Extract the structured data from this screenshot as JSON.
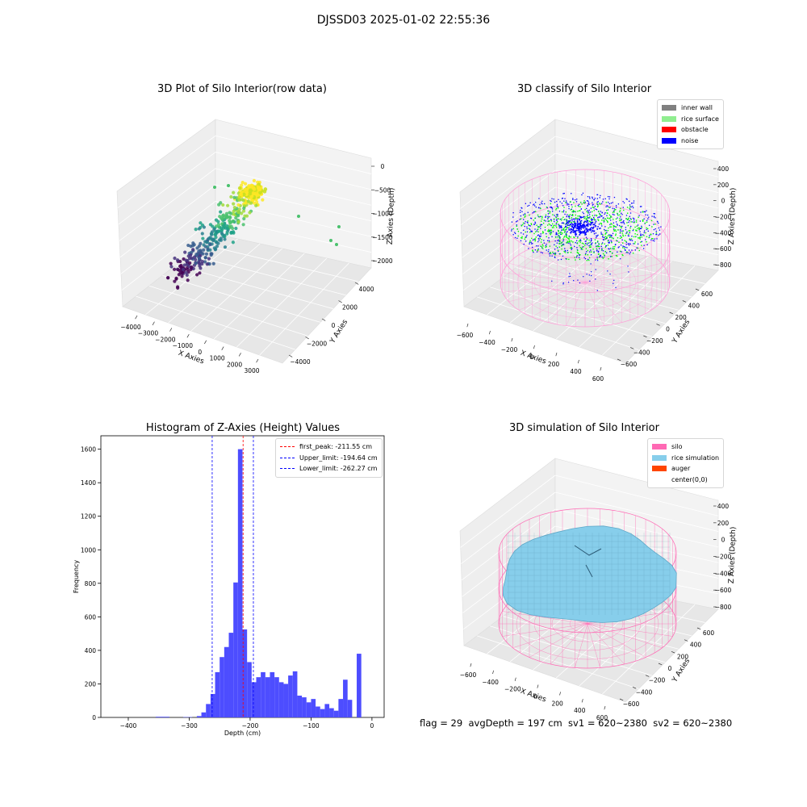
{
  "figure": {
    "suptitle": "DJSSD03 2025-01-02 22:55:36",
    "footer": "flag = 29  avgDepth = 197 cm  sv1 = 620~2380  sv2 = 620~2380"
  },
  "colors": {
    "inner_wall": "#808080",
    "rice_surface": "#90ee90",
    "obstacle": "#ff0000",
    "noise": "#0000ff",
    "silo": "#ff69b4",
    "rice_simulation": "#87ceeb",
    "auger": "#ff4500",
    "histogram_bar": "#4d4dff",
    "first_peak_line": "#ff0000",
    "limit_lines": "#0000ff"
  },
  "chart_data": [
    {
      "type": "scatter",
      "title": "3D Plot of Silo Interior(row data)",
      "xlabel": "X Axies",
      "ylabel": "Y Axies",
      "zlabel": "Z Axies (Depth)",
      "x_ticks": [
        "−4000",
        "−3000",
        "−2000",
        "−1000",
        "0",
        "1000",
        "2000",
        "3000"
      ],
      "y_ticks": [
        "−4000",
        "−2000",
        "0",
        "2000",
        "4000"
      ],
      "z_ticks": [
        "0",
        "−500",
        "−1000",
        "−1500",
        "−2000"
      ],
      "colormap": "viridis"
    },
    {
      "type": "scatter",
      "title": "3D classify of Silo Interior",
      "xlabel": "X Axies",
      "ylabel": "Y Axies",
      "zlabel": "Z Axies (Depth)",
      "x_ticks": [
        "−600",
        "−400",
        "−200",
        "0",
        "200",
        "400",
        "600"
      ],
      "y_ticks": [
        "−600",
        "−400",
        "−200",
        "0",
        "200",
        "400",
        "600"
      ],
      "z_ticks": [
        "400",
        "200",
        "0",
        "−200",
        "−400",
        "−600",
        "−800"
      ],
      "legend": [
        "inner wall",
        "rice surface",
        "obstacle",
        "noise"
      ]
    },
    {
      "type": "bar",
      "title": "Histogram of Z-Axies (Height) Values",
      "xlabel": "Depth (cm)",
      "ylabel": "Frequency",
      "xlim": [
        -445,
        20
      ],
      "ylim": [
        0,
        1680
      ],
      "x_ticks": [
        {
          "v": -400,
          "label": "−400"
        },
        {
          "v": -300,
          "label": "−300"
        },
        {
          "v": -200,
          "label": "−200"
        },
        {
          "v": -100,
          "label": "−100"
        },
        {
          "v": 0,
          "label": "0"
        }
      ],
      "y_ticks": [
        {
          "v": 0,
          "label": "0"
        },
        {
          "v": 200,
          "label": "200"
        },
        {
          "v": 400,
          "label": "400"
        },
        {
          "v": 600,
          "label": "600"
        },
        {
          "v": 800,
          "label": "800"
        },
        {
          "v": 1000,
          "label": "1000"
        },
        {
          "v": 1200,
          "label": "1200"
        },
        {
          "v": 1400,
          "label": "1400"
        },
        {
          "v": 1600,
          "label": "1600"
        }
      ],
      "bin_width": 7.5,
      "bins": [
        {
          "x": -355,
          "h": 4
        },
        {
          "x": -347.5,
          "h": 4
        },
        {
          "x": -340,
          "h": 4
        },
        {
          "x": -310,
          "h": 2
        },
        {
          "x": -302.5,
          "h": 2
        },
        {
          "x": -287.5,
          "h": 8
        },
        {
          "x": -280,
          "h": 30
        },
        {
          "x": -272.5,
          "h": 80
        },
        {
          "x": -265,
          "h": 140
        },
        {
          "x": -257.5,
          "h": 270
        },
        {
          "x": -250,
          "h": 360
        },
        {
          "x": -242.5,
          "h": 420
        },
        {
          "x": -235,
          "h": 505
        },
        {
          "x": -227.5,
          "h": 805
        },
        {
          "x": -220,
          "h": 1600
        },
        {
          "x": -212.5,
          "h": 525
        },
        {
          "x": -205,
          "h": 330
        },
        {
          "x": -197.5,
          "h": 210
        },
        {
          "x": -190,
          "h": 240
        },
        {
          "x": -182.5,
          "h": 270
        },
        {
          "x": -175,
          "h": 240
        },
        {
          "x": -167.5,
          "h": 270
        },
        {
          "x": -160,
          "h": 240
        },
        {
          "x": -152.5,
          "h": 210
        },
        {
          "x": -145,
          "h": 200
        },
        {
          "x": -137.5,
          "h": 250
        },
        {
          "x": -130,
          "h": 275
        },
        {
          "x": -122.5,
          "h": 130
        },
        {
          "x": -115,
          "h": 120
        },
        {
          "x": -107.5,
          "h": 90
        },
        {
          "x": -100,
          "h": 110
        },
        {
          "x": -92.5,
          "h": 65
        },
        {
          "x": -85,
          "h": 50
        },
        {
          "x": -77.5,
          "h": 80
        },
        {
          "x": -70,
          "h": 55
        },
        {
          "x": -62.5,
          "h": 40
        },
        {
          "x": -55,
          "h": 110
        },
        {
          "x": -47.5,
          "h": 225
        },
        {
          "x": -40,
          "h": 105
        },
        {
          "x": -25,
          "h": 380
        }
      ],
      "vlines": [
        {
          "x": -211.55,
          "label": "first_peak: -211.55 cm",
          "color": "#ff0000"
        },
        {
          "x": -194.64,
          "label": "Upper_limit: -194.64 cm",
          "color": "#0000ff"
        },
        {
          "x": -262.27,
          "label": "Lower_limit: -262.27 cm",
          "color": "#0000ff"
        }
      ],
      "legend_placement": "upper right"
    },
    {
      "type": "area",
      "title": "3D simulation of Silo Interior",
      "xlabel": "X Axies",
      "ylabel": "Y Axies",
      "zlabel": "Z Axies (Depth)",
      "x_ticks": [
        "−600",
        "−400",
        "−200",
        "0",
        "200",
        "400",
        "600"
      ],
      "y_ticks": [
        "−600",
        "−400",
        "−200",
        "0",
        "200",
        "400",
        "600"
      ],
      "z_ticks": [
        "400",
        "200",
        "0",
        "−200",
        "−400",
        "−600",
        "−800"
      ],
      "legend": [
        "silo",
        "rice simulation",
        "auger",
        "center(0,0)"
      ]
    }
  ]
}
